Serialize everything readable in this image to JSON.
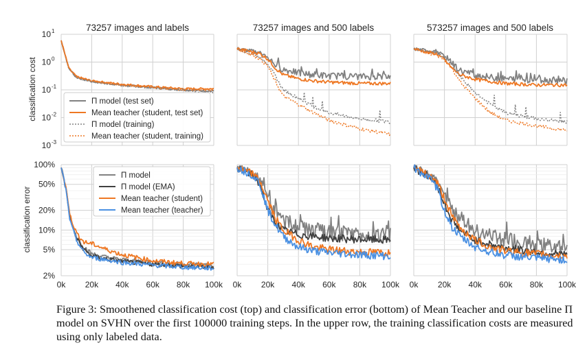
{
  "colors": {
    "pi_model": "#808080",
    "pi_model_ema": "#404040",
    "mt_student": "#ee7722",
    "mt_teacher": "#4a90e2",
    "grid": "#d0d0d0"
  },
  "row_labels": {
    "cost": "classification cost",
    "error": "classification error"
  },
  "column_titles": [
    "73257 images and labels",
    "73257 images and 500 labels",
    "573257 images and 500 labels"
  ],
  "x_ticks": [
    "0k",
    "20k",
    "40k",
    "60k",
    "80k",
    "100k"
  ],
  "cost_ticks": [
    {
      "base": "10",
      "exp": "1"
    },
    {
      "base": "10",
      "exp": "0"
    },
    {
      "base": "10",
      "exp": "-1"
    },
    {
      "base": "10",
      "exp": "-2"
    },
    {
      "base": "10",
      "exp": "-3"
    }
  ],
  "cost_tick_labels": [
    "10¹",
    "10⁰",
    "10⁻¹",
    "10⁻²",
    "10⁻³"
  ],
  "error_ticks": [
    "100%",
    "50%",
    "20%",
    "10%",
    "5%",
    "2%"
  ],
  "legend_top": [
    "Π model (test set)",
    "Mean teacher (student, test set)",
    "Π model (training)",
    "Mean teacher (student, training)"
  ],
  "legend_bottom": [
    "Π model",
    "Π model (EMA)",
    "Mean teacher (student)",
    "Mean teacher (teacher)"
  ],
  "caption": "Figure 3: Smoothened classification cost (top) and classification error (bottom) of Mean Teacher and our baseline Π model on SVHN over the first 100000 training steps. In the upper row, the training classification costs are measured using only labeled data.",
  "chart_data": [
    {
      "type": "line",
      "title": "73257 images and labels",
      "ylabel": "classification cost",
      "y_scale": "log",
      "xlim": [
        0,
        100000
      ],
      "ylim": [
        0.001,
        10
      ],
      "grid": true,
      "legend": "lower-left",
      "x": [
        0,
        5000,
        10000,
        20000,
        40000,
        60000,
        80000,
        100000
      ],
      "series": [
        {
          "name": "Π model (test set)",
          "values": [
            6,
            0.6,
            0.28,
            0.2,
            0.15,
            0.12,
            0.1,
            0.09
          ]
        },
        {
          "name": "Mean teacher (student, test set)",
          "values": [
            6,
            0.6,
            0.3,
            0.21,
            0.16,
            0.13,
            0.11,
            0.11
          ]
        },
        {
          "name": "Π model (training)",
          "values": [
            6,
            0.6,
            0.27,
            0.2,
            0.14,
            0.12,
            0.1,
            0.08
          ]
        },
        {
          "name": "Mean teacher (student, training)",
          "values": [
            6,
            0.6,
            0.29,
            0.21,
            0.15,
            0.12,
            0.1,
            0.1
          ]
        }
      ]
    },
    {
      "type": "line",
      "title": "73257 images and 500 labels",
      "y_scale": "log",
      "xlim": [
        0,
        100000
      ],
      "ylim": [
        0.001,
        10
      ],
      "grid": true,
      "x": [
        0,
        10000,
        15000,
        20000,
        25000,
        30000,
        40000,
        50000,
        60000,
        80000,
        100000
      ],
      "series": [
        {
          "name": "Π model (test set)",
          "values": [
            3,
            2.5,
            2.2,
            1.5,
            0.8,
            0.55,
            0.4,
            0.35,
            0.32,
            0.3,
            0.3
          ]
        },
        {
          "name": "Mean teacher (student, test set)",
          "values": [
            3,
            2.3,
            2.0,
            1.3,
            0.6,
            0.35,
            0.25,
            0.21,
            0.19,
            0.17,
            0.17
          ]
        },
        {
          "name": "Π model (training)",
          "values": [
            3,
            2.0,
            1.5,
            0.9,
            0.3,
            0.1,
            0.05,
            0.025,
            0.015,
            0.009,
            0.007
          ]
        },
        {
          "name": "Mean teacher (student, training)",
          "values": [
            3,
            1.8,
            1.3,
            0.7,
            0.2,
            0.06,
            0.03,
            0.015,
            0.008,
            0.004,
            0.0025
          ]
        }
      ]
    },
    {
      "type": "line",
      "title": "573257 images and 500 labels",
      "y_scale": "log",
      "xlim": [
        0,
        100000
      ],
      "ylim": [
        0.001,
        10
      ],
      "grid": true,
      "x": [
        0,
        10000,
        15000,
        20000,
        25000,
        30000,
        40000,
        50000,
        60000,
        80000,
        100000
      ],
      "series": [
        {
          "name": "Π model (test set)",
          "values": [
            3,
            2.5,
            2.5,
            1.6,
            0.9,
            0.5,
            0.35,
            0.28,
            0.25,
            0.23,
            0.22
          ]
        },
        {
          "name": "Mean teacher (student, test set)",
          "values": [
            3,
            2.2,
            2.0,
            1.2,
            0.6,
            0.35,
            0.24,
            0.2,
            0.17,
            0.15,
            0.15
          ]
        },
        {
          "name": "Π model (training)",
          "values": [
            3,
            2.3,
            2.2,
            1.5,
            0.8,
            0.3,
            0.08,
            0.03,
            0.015,
            0.009,
            0.007
          ]
        },
        {
          "name": "Mean teacher (student, training)",
          "values": [
            3,
            2.0,
            1.8,
            1.2,
            0.6,
            0.2,
            0.05,
            0.015,
            0.008,
            0.005,
            0.0035
          ]
        }
      ]
    },
    {
      "type": "line",
      "ylabel": "classification error",
      "y_scale": "log",
      "xlim": [
        0,
        100000
      ],
      "ylim": [
        2,
        100
      ],
      "grid": true,
      "legend": "upper-right",
      "x": [
        0,
        3000,
        6000,
        10000,
        15000,
        20000,
        30000,
        40000,
        60000,
        80000,
        100000
      ],
      "series": [
        {
          "name": "Π model",
          "values": [
            90,
            45,
            15,
            8,
            5.5,
            4.3,
            3.8,
            3.5,
            3.2,
            3.0,
            2.9
          ]
        },
        {
          "name": "Π model (EMA)",
          "values": [
            90,
            44,
            14,
            7.5,
            5.0,
            4.0,
            3.6,
            3.3,
            3.0,
            2.8,
            2.7
          ]
        },
        {
          "name": "Mean teacher (student)",
          "values": [
            90,
            46,
            16,
            9,
            6.5,
            6.2,
            5.0,
            4.2,
            3.4,
            3.1,
            3.0
          ]
        },
        {
          "name": "Mean teacher (teacher)",
          "values": [
            90,
            43,
            13,
            7,
            4.5,
            3.8,
            3.5,
            3.2,
            2.9,
            2.7,
            2.6
          ]
        }
      ]
    },
    {
      "type": "line",
      "y_scale": "log",
      "xlim": [
        0,
        100000
      ],
      "ylim": [
        2,
        100
      ],
      "grid": true,
      "x": [
        0,
        10000,
        15000,
        20000,
        25000,
        30000,
        40000,
        50000,
        60000,
        80000,
        100000
      ],
      "series": [
        {
          "name": "Π model",
          "values": [
            90,
            75,
            60,
            30,
            18,
            14,
            11,
            10,
            9,
            8.5,
            8.5
          ]
        },
        {
          "name": "Π model (EMA)",
          "values": [
            90,
            70,
            50,
            20,
            13,
            10,
            8.5,
            8,
            7.5,
            7.2,
            7
          ]
        },
        {
          "name": "Mean teacher (student)",
          "values": [
            90,
            72,
            55,
            28,
            15,
            10,
            7,
            5.5,
            5,
            4.6,
            4.5
          ]
        },
        {
          "name": "Mean teacher (teacher)",
          "values": [
            90,
            70,
            50,
            20,
            12,
            8,
            5.5,
            4.8,
            4.5,
            4.2,
            4.0
          ]
        }
      ]
    },
    {
      "type": "line",
      "y_scale": "log",
      "xlim": [
        0,
        100000
      ],
      "ylim": [
        2,
        100
      ],
      "grid": true,
      "x": [
        0,
        10000,
        15000,
        20000,
        25000,
        30000,
        40000,
        50000,
        60000,
        80000,
        100000
      ],
      "series": [
        {
          "name": "Π model",
          "values": [
            90,
            70,
            60,
            35,
            20,
            15,
            10,
            8,
            7,
            6,
            5.5
          ]
        },
        {
          "name": "Π model (EMA)",
          "values": [
            90,
            65,
            50,
            25,
            14,
            10,
            7,
            6,
            5.3,
            4.6,
            4.2
          ]
        },
        {
          "name": "Mean teacher (student)",
          "values": [
            90,
            68,
            55,
            30,
            16,
            11,
            7,
            5.5,
            4.8,
            4.3,
            4.0
          ]
        },
        {
          "name": "Mean teacher (teacher)",
          "values": [
            90,
            62,
            45,
            20,
            11,
            8,
            5.5,
            4.6,
            4.1,
            3.7,
            3.5
          ]
        }
      ]
    }
  ]
}
